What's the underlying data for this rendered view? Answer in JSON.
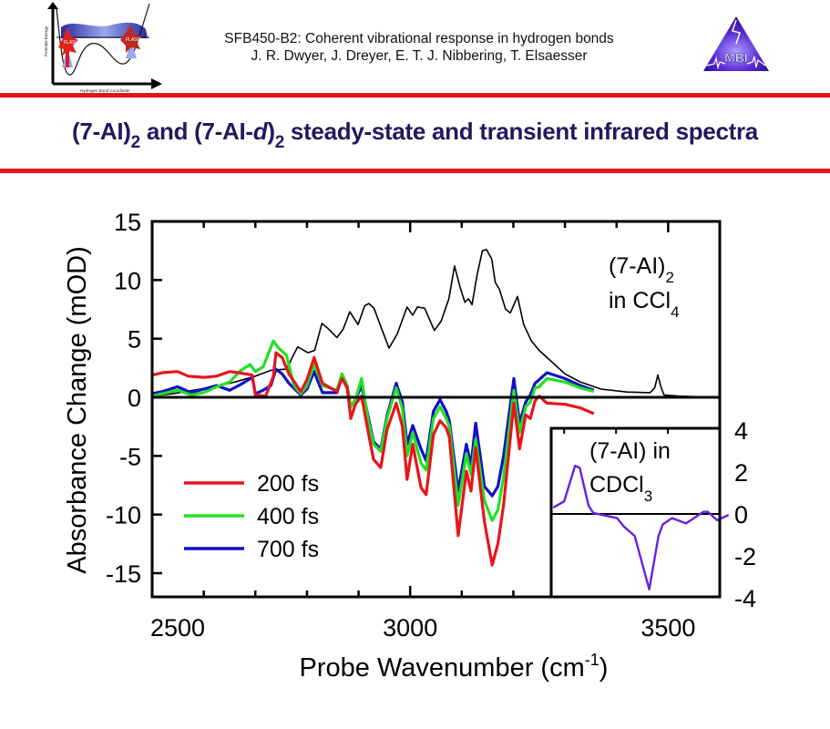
{
  "header": {
    "line1": "SFB450-B2: Coherent vibrational response in hydrogen bonds",
    "line2": "J. R. Dwyer, J. Dreyer, E. T. J. Nibbering, T. Elsaesser",
    "left_logo": {
      "y_axis_label": "Potential Energy",
      "x_axis_label": "Hydrogen Bond Coordinate",
      "flash_label": "FLASH"
    },
    "right_logo": {
      "text": "MBI"
    }
  },
  "slide_title": {
    "part1": "(7-AI)",
    "sub1": "2",
    "part2": " and (7-AI-",
    "italic": "d",
    "part3": ")",
    "sub2": "2",
    "part4": " steady-state and transient infrared spectra"
  },
  "colors": {
    "rule": "#e3141b",
    "title": "#24185e",
    "series_200fs": "#e8141b",
    "series_400fs": "#22e022",
    "series_700fs": "#1010c8",
    "steady_state": "#000000",
    "inset_series": "#6a1ee0"
  },
  "chart_data": [
    {
      "type": "line",
      "title": "",
      "xlabel": "Probe Wavenumber (cm",
      "xlabel_sup": "-1",
      "xlabel_end": ")",
      "ylabel": "Absorbance Change (mOD)",
      "xlim": [
        2500,
        3600
      ],
      "ylim": [
        -17,
        15
      ],
      "x_ticks": [
        2500,
        3000,
        3500
      ],
      "x_tick_labels": [
        "2500",
        "3000",
        "3500"
      ],
      "x_minor_step": 100,
      "y_ticks": [
        15,
        10,
        5,
        0,
        -5,
        -10,
        -15
      ],
      "y_tick_labels": [
        "15",
        "10",
        "5",
        "0",
        "-5",
        "-10",
        "-15"
      ],
      "zero_line": true,
      "annotation": {
        "line1": "(7-AI)",
        "line1_sub": "2",
        "line2": "in CCl",
        "line2_sub": "4"
      },
      "legend": {
        "placement": "lower-left",
        "entries": [
          "200 fs",
          "400 fs",
          "700 fs"
        ]
      },
      "series": [
        {
          "name": "(7-AI)2 in CCl4 steady-state",
          "color_key": "steady_state",
          "points": [
            [
              2500,
              0.1
            ],
            [
              2540,
              0.3
            ],
            [
              2580,
              0.6
            ],
            [
              2620,
              0.9
            ],
            [
              2660,
              1.3
            ],
            [
              2700,
              1.8
            ],
            [
              2730,
              2.3
            ],
            [
              2760,
              2.4
            ],
            [
              2782,
              4.3
            ],
            [
              2802,
              3.8
            ],
            [
              2815,
              4.0
            ],
            [
              2829,
              6.3
            ],
            [
              2840,
              5.9
            ],
            [
              2858,
              5.1
            ],
            [
              2870,
              5.8
            ],
            [
              2883,
              7.3
            ],
            [
              2899,
              6.2
            ],
            [
              2912,
              7.8
            ],
            [
              2920,
              8.0
            ],
            [
              2930,
              7.6
            ],
            [
              2940,
              6.4
            ],
            [
              2959,
              4.2
            ],
            [
              2975,
              5.4
            ],
            [
              2994,
              7.7
            ],
            [
              3005,
              7.0
            ],
            [
              3014,
              7.7
            ],
            [
              3028,
              7.6
            ],
            [
              3047,
              5.7
            ],
            [
              3060,
              6.5
            ],
            [
              3075,
              8.4
            ],
            [
              3086,
              11.2
            ],
            [
              3096,
              9.5
            ],
            [
              3106,
              8.1
            ],
            [
              3113,
              8.4
            ],
            [
              3120,
              7.9
            ],
            [
              3130,
              10.5
            ],
            [
              3140,
              12.5
            ],
            [
              3148,
              12.6
            ],
            [
              3158,
              11.8
            ],
            [
              3165,
              9.8
            ],
            [
              3173,
              9.2
            ],
            [
              3185,
              7.5
            ],
            [
              3194,
              7.2
            ],
            [
              3208,
              8.6
            ],
            [
              3220,
              6.2
            ],
            [
              3235,
              4.8
            ],
            [
              3250,
              4.0
            ],
            [
              3275,
              3.0
            ],
            [
              3300,
              2.0
            ],
            [
              3330,
              1.3
            ],
            [
              3370,
              0.7
            ],
            [
              3420,
              0.45
            ],
            [
              3465,
              0.4
            ],
            [
              3474,
              0.8
            ],
            [
              3480,
              1.9
            ],
            [
              3486,
              0.9
            ],
            [
              3492,
              0.2
            ],
            [
              3520,
              0.1
            ],
            [
              3560,
              0.05
            ],
            [
              3600,
              0.05
            ]
          ]
        },
        {
          "name": "200 fs",
          "color_key": "series_200fs",
          "points": [
            [
              2500,
              1.9
            ],
            [
              2520,
              2.1
            ],
            [
              2549,
              2.2
            ],
            [
              2570,
              1.8
            ],
            [
              2600,
              1.7
            ],
            [
              2625,
              1.8
            ],
            [
              2650,
              2.2
            ],
            [
              2668,
              2.1
            ],
            [
              2694,
              1.9
            ],
            [
              2700,
              0.2
            ],
            [
              2720,
              0.1
            ],
            [
              2735,
              1.8
            ],
            [
              2740,
              3.8
            ],
            [
              2752,
              3.4
            ],
            [
              2765,
              2.0
            ],
            [
              2788,
              0.5
            ],
            [
              2800,
              1.5
            ],
            [
              2814,
              3.4
            ],
            [
              2830,
              1.2
            ],
            [
              2858,
              0.5
            ],
            [
              2868,
              1.6
            ],
            [
              2878,
              0.8
            ],
            [
              2885,
              -1.8
            ],
            [
              2894,
              -0.6
            ],
            [
              2906,
              0.1
            ],
            [
              2918,
              -2.8
            ],
            [
              2929,
              -5.3
            ],
            [
              2943,
              -6.0
            ],
            [
              2955,
              -2.8
            ],
            [
              2973,
              -0.5
            ],
            [
              2985,
              -2.5
            ],
            [
              2994,
              -7.0
            ],
            [
              3005,
              -4.0
            ],
            [
              3021,
              -7.7
            ],
            [
              3031,
              -8.3
            ],
            [
              3045,
              -3.2
            ],
            [
              3058,
              -2.0
            ],
            [
              3070,
              -2.6
            ],
            [
              3076,
              -3.4
            ],
            [
              3093,
              -11.8
            ],
            [
              3109,
              -6.3
            ],
            [
              3118,
              -8.0
            ],
            [
              3127,
              -4.3
            ],
            [
              3144,
              -10.6
            ],
            [
              3159,
              -14.3
            ],
            [
              3170,
              -12.5
            ],
            [
              3181,
              -9.2
            ],
            [
              3201,
              -0.5
            ],
            [
              3212,
              -4.4
            ],
            [
              3224,
              -1.5
            ],
            [
              3233,
              -1.8
            ],
            [
              3242,
              -0.3
            ],
            [
              3250,
              0.1
            ],
            [
              3265,
              -0.5
            ],
            [
              3300,
              -0.6
            ],
            [
              3330,
              -0.9
            ],
            [
              3356,
              -1.4
            ]
          ]
        },
        {
          "name": "400 fs",
          "color_key": "series_400fs",
          "points": [
            [
              2500,
              0.1
            ],
            [
              2520,
              0.3
            ],
            [
              2549,
              0.6
            ],
            [
              2575,
              0.2
            ],
            [
              2600,
              0.4
            ],
            [
              2625,
              0.9
            ],
            [
              2650,
              1.3
            ],
            [
              2672,
              2.3
            ],
            [
              2690,
              2.8
            ],
            [
              2700,
              2.2
            ],
            [
              2715,
              2.6
            ],
            [
              2735,
              4.8
            ],
            [
              2745,
              4.2
            ],
            [
              2760,
              3.6
            ],
            [
              2775,
              1.0
            ],
            [
              2788,
              0.3
            ],
            [
              2800,
              1.0
            ],
            [
              2814,
              2.8
            ],
            [
              2830,
              1.0
            ],
            [
              2858,
              0.6
            ],
            [
              2868,
              2.0
            ],
            [
              2878,
              1.0
            ],
            [
              2885,
              -0.8
            ],
            [
              2894,
              -0.2
            ],
            [
              2906,
              1.6
            ],
            [
              2918,
              -1.8
            ],
            [
              2929,
              -4.0
            ],
            [
              2943,
              -4.6
            ],
            [
              2955,
              -1.8
            ],
            [
              2973,
              0.8
            ],
            [
              2985,
              -1.0
            ],
            [
              2994,
              -5.0
            ],
            [
              3005,
              -3.0
            ],
            [
              3021,
              -5.6
            ],
            [
              3031,
              -6.2
            ],
            [
              3045,
              -1.8
            ],
            [
              3058,
              -0.8
            ],
            [
              3070,
              -1.8
            ],
            [
              3076,
              -2.5
            ],
            [
              3093,
              -9.2
            ],
            [
              3109,
              -4.8
            ],
            [
              3118,
              -6.6
            ],
            [
              3127,
              -3.6
            ],
            [
              3144,
              -8.8
            ],
            [
              3159,
              -10.5
            ],
            [
              3170,
              -9.6
            ],
            [
              3181,
              -6.8
            ],
            [
              3201,
              0.6
            ],
            [
              3212,
              -3.0
            ],
            [
              3224,
              -0.8
            ],
            [
              3233,
              -0.4
            ],
            [
              3242,
              0.8
            ],
            [
              3250,
              0.9
            ],
            [
              3265,
              1.6
            ],
            [
              3300,
              1.3
            ],
            [
              3330,
              0.8
            ],
            [
              3356,
              0.5
            ]
          ]
        },
        {
          "name": "700 fs",
          "color_key": "series_700fs",
          "points": [
            [
              2500,
              0.3
            ],
            [
              2520,
              0.5
            ],
            [
              2549,
              0.9
            ],
            [
              2575,
              0.4
            ],
            [
              2600,
              0.7
            ],
            [
              2625,
              1.0
            ],
            [
              2650,
              0.6
            ],
            [
              2672,
              1.1
            ],
            [
              2694,
              1.7
            ],
            [
              2700,
              0.3
            ],
            [
              2715,
              0.6
            ],
            [
              2730,
              1.0
            ],
            [
              2740,
              2.4
            ],
            [
              2752,
              2.0
            ],
            [
              2765,
              1.2
            ],
            [
              2788,
              0.2
            ],
            [
              2800,
              0.7
            ],
            [
              2814,
              2.2
            ],
            [
              2830,
              0.4
            ],
            [
              2858,
              0.4
            ],
            [
              2868,
              1.8
            ],
            [
              2878,
              0.8
            ],
            [
              2885,
              -0.8
            ],
            [
              2894,
              -0.2
            ],
            [
              2906,
              1.0
            ],
            [
              2918,
              -1.5
            ],
            [
              2929,
              -3.8
            ],
            [
              2943,
              -4.4
            ],
            [
              2955,
              -1.6
            ],
            [
              2973,
              1.2
            ],
            [
              2985,
              -0.4
            ],
            [
              2994,
              -4.0
            ],
            [
              3005,
              -2.4
            ],
            [
              3021,
              -4.4
            ],
            [
              3031,
              -5.4
            ],
            [
              3045,
              -1.2
            ],
            [
              3058,
              -0.2
            ],
            [
              3070,
              -1.2
            ],
            [
              3076,
              -2.0
            ],
            [
              3093,
              -8.0
            ],
            [
              3109,
              -4.0
            ],
            [
              3118,
              -5.8
            ],
            [
              3127,
              -2.2
            ],
            [
              3144,
              -7.6
            ],
            [
              3159,
              -8.4
            ],
            [
              3170,
              -7.6
            ],
            [
              3181,
              -5.0
            ],
            [
              3201,
              1.6
            ],
            [
              3212,
              -2.2
            ],
            [
              3224,
              -0.4
            ],
            [
              3233,
              0.2
            ],
            [
              3242,
              1.2
            ],
            [
              3250,
              1.5
            ],
            [
              3265,
              2.1
            ],
            [
              3300,
              1.6
            ],
            [
              3330,
              1.0
            ],
            [
              3356,
              0.6
            ]
          ]
        }
      ]
    },
    {
      "type": "line",
      "title": "",
      "placement": "lower-right inset",
      "xlim": [
        3275,
        3600
      ],
      "ylim": [
        -4,
        4
      ],
      "x_ticks_minor": [
        3300,
        3400,
        3500
      ],
      "y_ticks": [
        4,
        2,
        0,
        -2,
        -4
      ],
      "y_tick_labels": [
        "4",
        "2",
        "0",
        "-2",
        "-4"
      ],
      "zero_line": true,
      "annotation": {
        "line1": "(7-AI) in",
        "line2": "CDCl",
        "line2_sub": "3"
      },
      "series": [
        {
          "name": "(7-AI) in CDCl3",
          "color_key": "inset_series",
          "points": [
            [
              3279,
              0.3
            ],
            [
              3300,
              0.6
            ],
            [
              3321,
              2.3
            ],
            [
              3330,
              2.2
            ],
            [
              3347,
              0.4
            ],
            [
              3356,
              0.05
            ],
            [
              3402,
              -0.2
            ],
            [
              3415,
              -0.6
            ],
            [
              3436,
              -1.05
            ],
            [
              3464,
              -3.6
            ],
            [
              3482,
              -1.05
            ],
            [
              3490,
              -0.5
            ],
            [
              3508,
              -0.2
            ],
            [
              3535,
              -0.45
            ],
            [
              3568,
              0.1
            ],
            [
              3577,
              0.1
            ],
            [
              3595,
              -0.3
            ],
            [
              3617,
              -0.05
            ]
          ]
        }
      ]
    }
  ]
}
